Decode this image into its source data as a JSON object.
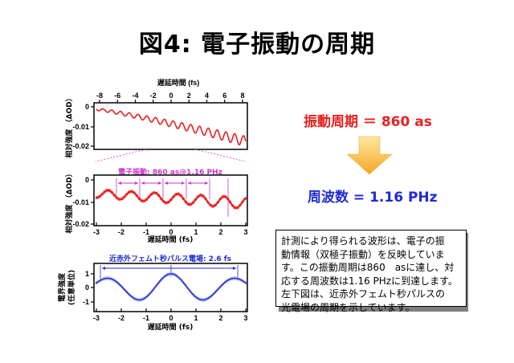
{
  "slide": {
    "title": "図4: 電子振動の周期"
  },
  "colors": {
    "red": "#e8201e",
    "blue": "#1f2bd6",
    "pink": "#cc33cc",
    "arrow_top": "#fde8a0",
    "arrow_bottom": "#f5a623"
  },
  "panel_top": {
    "xlabel": "遅延時間 (fs)",
    "ylabel": "相対強度 （ΔOD）",
    "x_ticks": [
      "-8",
      "-6",
      "-4",
      "-2",
      "0",
      "2",
      "4",
      "6",
      "8"
    ],
    "y_ticks": [
      "0",
      "-0.01",
      "-0.02"
    ]
  },
  "panel_middle": {
    "annotation": "電子振動: 860 as@1.16 PHz",
    "ylabel": "相対強度 （ΔOD）",
    "xlabel": "遅延時間 (fs)",
    "x_ticks": [
      "-3",
      "-2",
      "-1",
      "0",
      "1",
      "2",
      "3"
    ],
    "y_ticks": [
      "0",
      "-0.01",
      "-0.02"
    ]
  },
  "panel_bottom": {
    "annotation": "近赤外フェムト秒パルス電場: 2.6 fs",
    "ylabel_line1": "電界強度",
    "ylabel_line2": "(任意単位)",
    "xlabel": "遅延時間 (fs)",
    "x_ticks": [
      "-3",
      "-2",
      "-1",
      "0",
      "1",
      "2",
      "3"
    ],
    "y_ticks": [
      "1",
      "0",
      "-1"
    ]
  },
  "results": {
    "period": "振動周期 ＝ 860 as",
    "frequency": "周波数 = 1.16 PHz"
  },
  "note": {
    "lines": [
      "計測により得られる波形は、電子の振",
      "動情報（双極子振動）を反映していま",
      "す。この振動周期は860　asに達し、対",
      "応する周波数は1.16 PHzに到達します。",
      "左下図は、近赤外フェムト秒パルスの",
      "光電場の周期を示しています。"
    ]
  }
}
